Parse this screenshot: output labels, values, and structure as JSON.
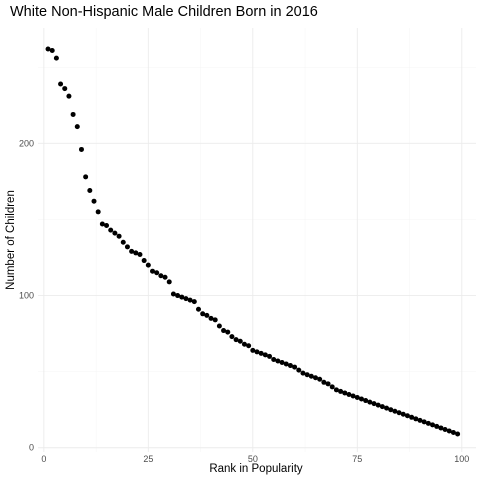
{
  "chart_data": {
    "type": "scatter",
    "title": "White Non-Hispanic Male Children Born in 2016",
    "xlabel": "Rank in Popularity",
    "ylabel": "Number of Children",
    "xlim": [
      -1.4,
      103.4
    ],
    "ylim": [
      -2.8,
      275.8
    ],
    "x_ticks": [
      0,
      25,
      50,
      75,
      100
    ],
    "y_ticks": [
      0,
      100,
      200
    ],
    "x_tick_labels": [
      "0",
      "25",
      "50",
      "75",
      "100"
    ],
    "y_tick_labels": [
      "0",
      "100",
      "200"
    ],
    "grid": true,
    "legend": "none",
    "point_color": "#000000",
    "x": [
      1,
      2,
      3,
      4,
      5,
      6,
      7,
      8,
      9,
      10,
      11,
      12,
      13,
      14,
      15,
      16,
      17,
      18,
      19,
      20,
      21,
      22,
      23,
      24,
      25,
      26,
      27,
      28,
      29,
      30,
      31,
      32,
      33,
      34,
      35,
      36,
      37,
      38,
      39,
      40,
      41,
      42,
      43,
      44,
      45,
      46,
      47,
      48,
      49,
      50,
      51,
      52,
      53,
      54,
      55,
      56,
      57,
      58,
      59,
      60,
      61,
      62,
      63,
      64,
      65,
      66,
      67,
      68,
      69,
      70,
      71,
      72,
      73,
      74,
      75,
      76,
      77,
      78,
      79,
      80,
      81,
      82,
      83,
      84,
      85,
      86,
      87,
      88,
      89,
      90,
      91,
      92,
      93,
      94,
      95,
      96,
      97,
      98,
      99
    ],
    "y": [
      262,
      261,
      256,
      239,
      236,
      231,
      219,
      211,
      196,
      178,
      169,
      162,
      155,
      147,
      146,
      143,
      141,
      139,
      135,
      132,
      129,
      128,
      127,
      123,
      120,
      116,
      115,
      113,
      112,
      109,
      101,
      100,
      99,
      98,
      97,
      96,
      91,
      88,
      87,
      85,
      84,
      80,
      77,
      76,
      73,
      71,
      70,
      68,
      67,
      64,
      63,
      62,
      61,
      60,
      58,
      57,
      56,
      55,
      54,
      53,
      51,
      49,
      48,
      47,
      46,
      45,
      43,
      42,
      40,
      38,
      37,
      36,
      35,
      34,
      33,
      32,
      31,
      30,
      29,
      28,
      27,
      26,
      25,
      24,
      23,
      22,
      21,
      20,
      19,
      18,
      17,
      16,
      15,
      14,
      13,
      12,
      11,
      10,
      9
    ]
  }
}
